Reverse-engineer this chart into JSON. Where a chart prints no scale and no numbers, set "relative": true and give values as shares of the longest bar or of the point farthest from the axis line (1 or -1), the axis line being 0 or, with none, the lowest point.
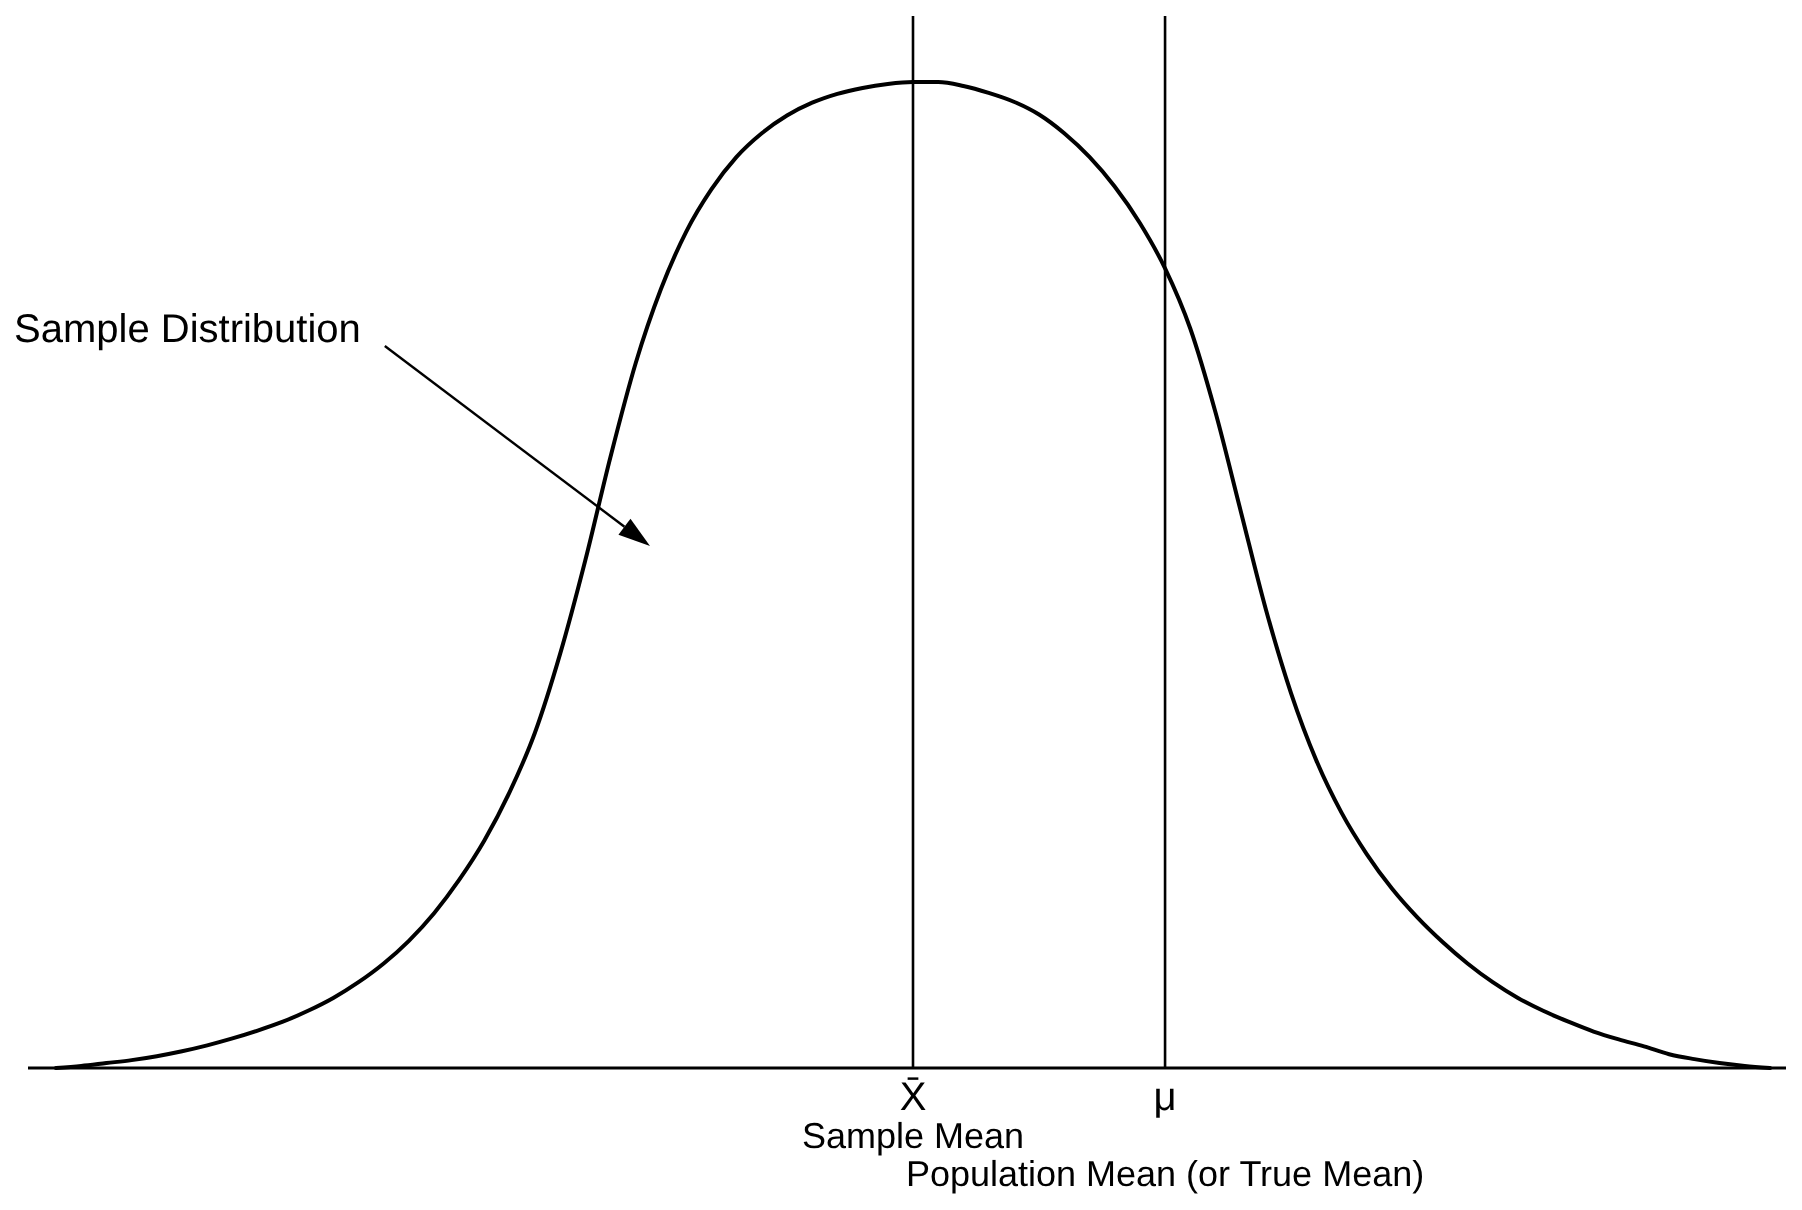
{
  "chart_data": {
    "type": "line",
    "relative": true,
    "color": "#000000",
    "categories": [
      null,
      null,
      null,
      null,
      null,
      null,
      null,
      null,
      null,
      null,
      null,
      null,
      null,
      null,
      null,
      null,
      null,
      null,
      null,
      null,
      null,
      null,
      null,
      null,
      null,
      null,
      null,
      null,
      null,
      null,
      null,
      null,
      null,
      null,
      "X̄",
      null,
      null,
      null,
      null,
      null,
      null,
      null,
      null,
      null,
      "μ",
      null,
      null,
      null,
      null,
      null,
      null,
      null,
      null,
      null,
      null,
      null,
      null,
      null,
      null,
      null,
      null,
      null,
      null,
      null,
      null,
      null,
      null,
      null,
      null
    ],
    "values": [
      0,
      0.002,
      0.005,
      0.008,
      0.012,
      0.017,
      0.023,
      0.03,
      0.038,
      0.047,
      0.058,
      0.071,
      0.087,
      0.106,
      0.129,
      0.157,
      0.191,
      0.231,
      0.28,
      0.34,
      0.42,
      0.515,
      0.62,
      0.715,
      0.79,
      0.848,
      0.891,
      0.924,
      0.948,
      0.966,
      0.979,
      0.988,
      0.994,
      0.998,
      1,
      1,
      0.996,
      0.989,
      0.98,
      0.967,
      0.948,
      0.924,
      0.894,
      0.857,
      0.811,
      0.75,
      0.665,
      0.565,
      0.465,
      0.38,
      0.312,
      0.259,
      0.217,
      0.182,
      0.153,
      0.128,
      0.106,
      0.087,
      0.071,
      0.058,
      0.047,
      0.037,
      0.029,
      0.022,
      0.014,
      0.009,
      0.005,
      0.002,
      0
    ],
    "ref_lines": [
      {
        "axis": "x",
        "value": "X̄",
        "label": "Sample Mean",
        "color": "#000000"
      },
      {
        "axis": "x",
        "value": "μ",
        "label": "Population Mean (or True Mean)",
        "color": "#000000"
      }
    ],
    "annotations": [
      "Sample Distribution"
    ]
  }
}
